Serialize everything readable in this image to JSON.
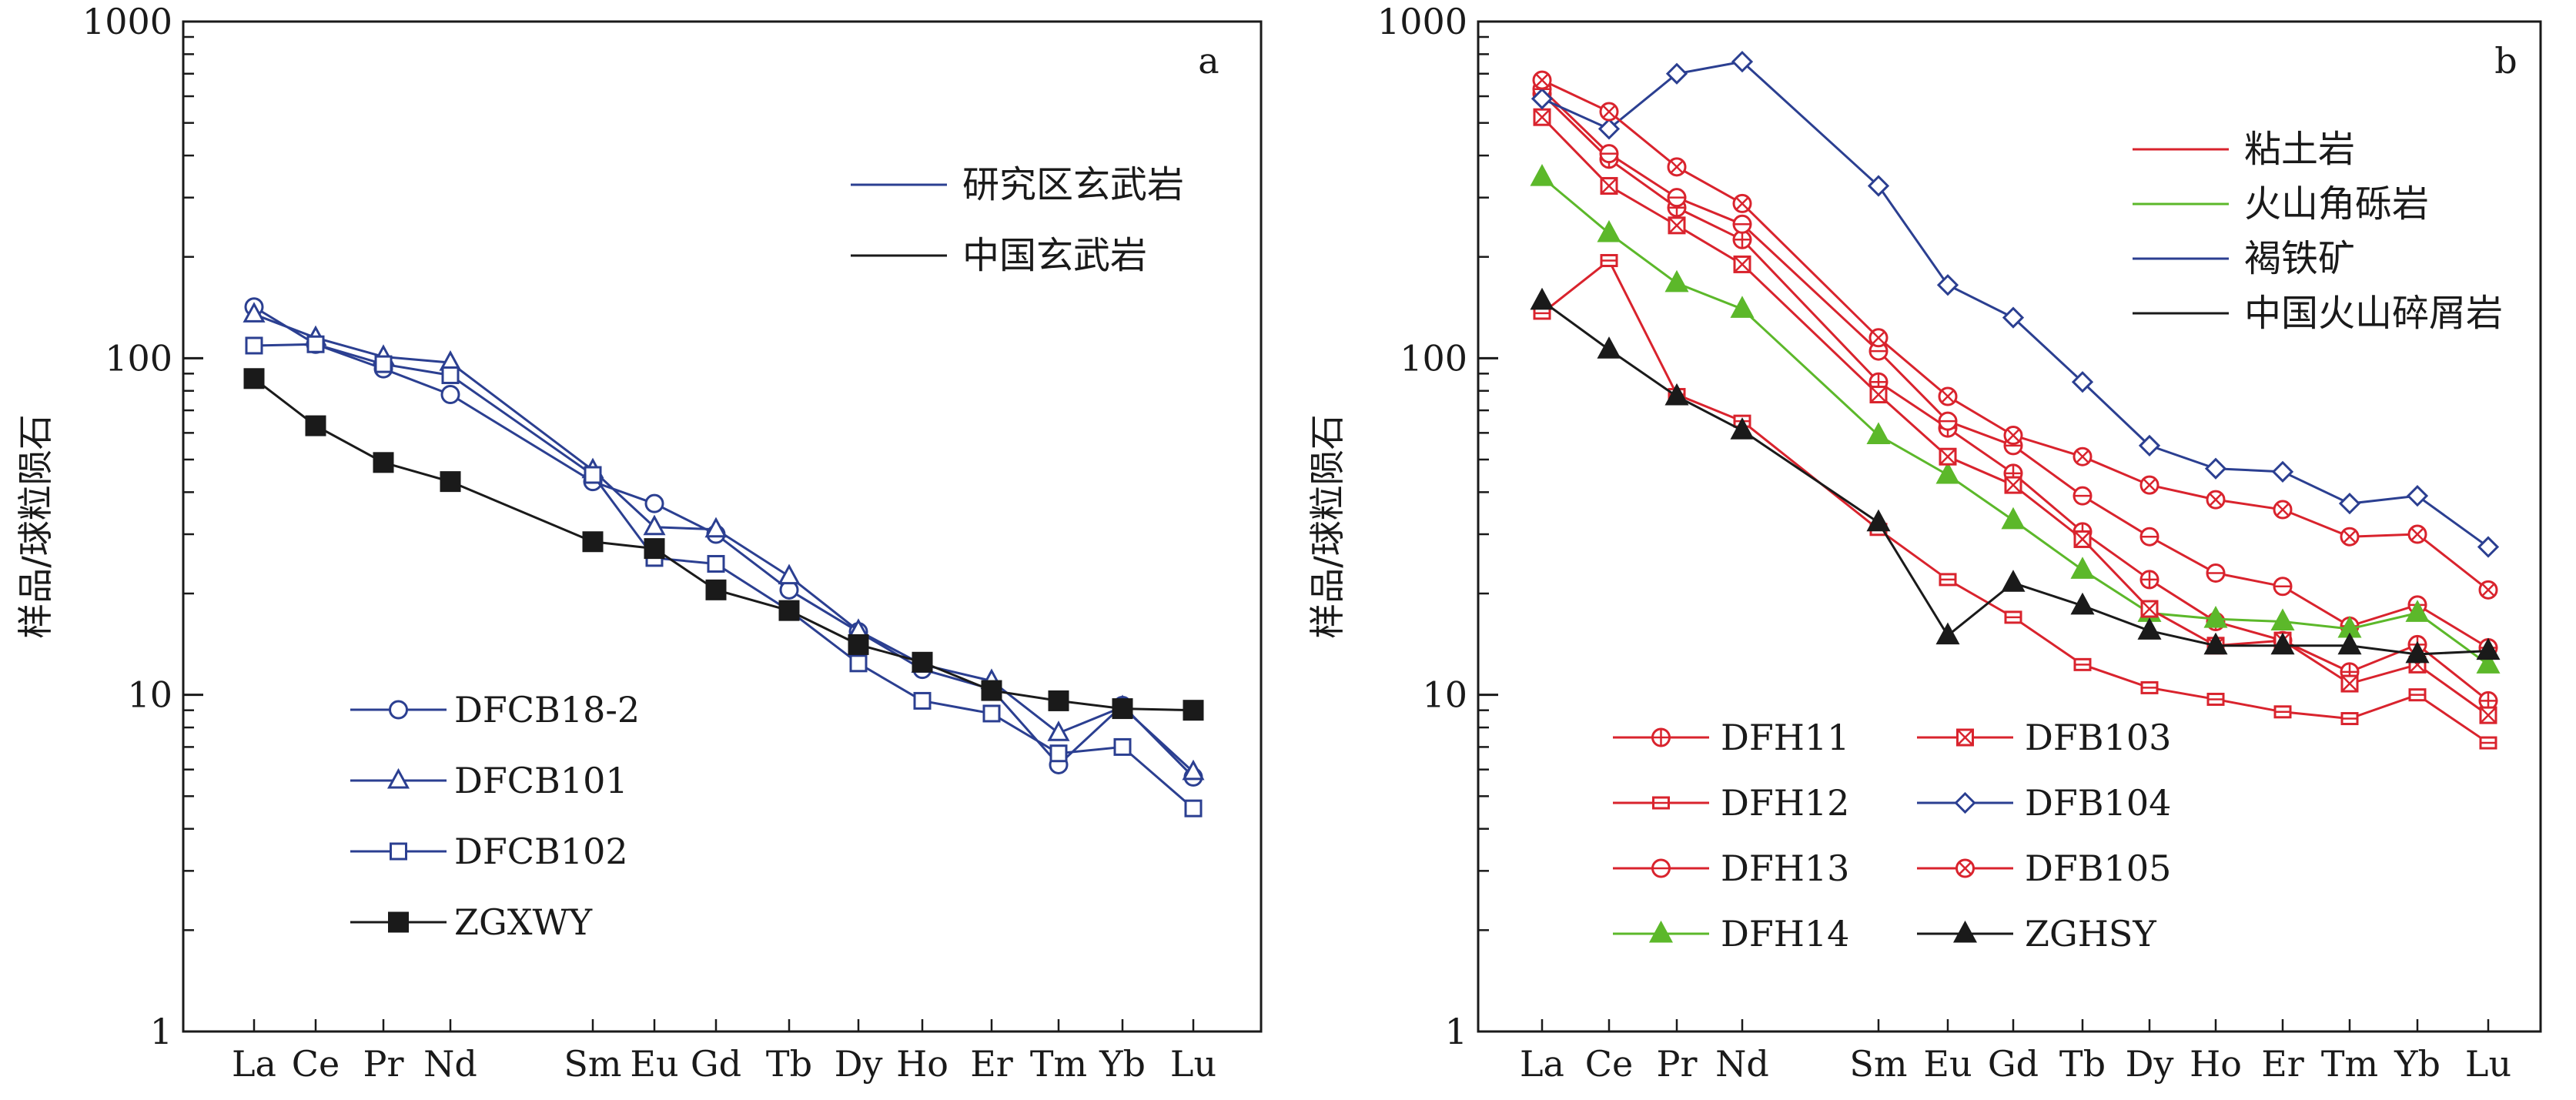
{
  "chart_data": [
    {
      "type": "line",
      "panel_label": "a",
      "ylabel": "样品/球粒陨石",
      "yscale": "log",
      "ylim": [
        1,
        1000
      ],
      "yticks": [
        "1",
        "10",
        "100",
        "1000"
      ],
      "categories": [
        "La",
        "Ce",
        "Pr",
        "Nd",
        "Sm",
        "Eu",
        "Gd",
        "Tb",
        "Dy",
        "Ho",
        "Er",
        "Tm",
        "Yb",
        "Lu"
      ],
      "group_legend": [
        {
          "label": "研究区玄武岩",
          "color": "#2b3f91"
        },
        {
          "label": "中国玄武岩",
          "color": "#1a1a1a"
        }
      ],
      "series": [
        {
          "name": "DFCB18-2",
          "marker": "circle",
          "color": "#2b3f91",
          "values": [
            142,
            110,
            93,
            78,
            43,
            37,
            30,
            20.5,
            15.4,
            11.9,
            10.4,
            6.2,
            9.3,
            5.7
          ]
        },
        {
          "name": "DFCB101",
          "marker": "triangle",
          "color": "#2b3f91",
          "values": [
            135,
            115,
            101,
            97,
            46.5,
            31.5,
            31,
            22.5,
            15.5,
            12.3,
            11,
            7.7,
            9.2,
            5.9
          ]
        },
        {
          "name": "DFCB102",
          "marker": "square-open",
          "color": "#2b3f91",
          "values": [
            109,
            110,
            96,
            89,
            45,
            25.5,
            24.5,
            17.8,
            12.4,
            9.6,
            8.8,
            6.7,
            7,
            4.6
          ]
        },
        {
          "name": "ZGXWY",
          "marker": "square-filled",
          "color": "#1a1a1a",
          "values": [
            87,
            63,
            49,
            43,
            28.5,
            27.2,
            20.5,
            17.8,
            14.1,
            12.5,
            10.3,
            9.6,
            9.1,
            9
          ]
        }
      ]
    },
    {
      "type": "line",
      "panel_label": "b",
      "ylabel": "样品/球粒陨石",
      "yscale": "log",
      "ylim": [
        1,
        1000
      ],
      "yticks": [
        "1",
        "10",
        "100",
        "1000"
      ],
      "categories": [
        "La",
        "Ce",
        "Pr",
        "Nd",
        "Sm",
        "Eu",
        "Gd",
        "Tb",
        "Dy",
        "Ho",
        "Er",
        "Tm",
        "Yb",
        "Lu"
      ],
      "group_legend": [
        {
          "label": "粘土岩",
          "color": "#d9232d"
        },
        {
          "label": "火山角砾岩",
          "color": "#5cb82a"
        },
        {
          "label": "褐铁矿",
          "color": "#2b3f91"
        },
        {
          "label": "中国火山碎屑岩",
          "color": "#1a1a1a"
        }
      ],
      "series": [
        {
          "name": "DFH11",
          "marker": "circle-plus",
          "color": "#d9232d",
          "values": [
            610,
            390,
            280,
            225,
            85,
            62,
            45.5,
            30.5,
            22,
            16.5,
            14.5,
            11.7,
            14.1,
            9.6
          ]
        },
        {
          "name": "DFH12",
          "marker": "half-square",
          "color": "#d9232d",
          "values": [
            136,
            195,
            78,
            65,
            31,
            22,
            17,
            12.3,
            10.5,
            9.7,
            8.9,
            8.5,
            10,
            7.2
          ]
        },
        {
          "name": "DFH13",
          "marker": "circle-dot-line",
          "color": "#d9232d",
          "values": [
            630,
            405,
            300,
            250,
            105,
            65,
            55,
            39,
            29.5,
            23,
            21,
            16,
            18.5,
            13.8
          ]
        },
        {
          "name": "DFH14",
          "marker": "triangle-filled",
          "color": "#5cb82a",
          "values": [
            345,
            235,
            167,
            140,
            59,
            45,
            33,
            23.5,
            17.5,
            16.8,
            16.5,
            15.7,
            17.5,
            12.3
          ]
        },
        {
          "name": "DFB103",
          "marker": "square-x",
          "color": "#d9232d",
          "values": [
            520,
            325,
            248,
            190,
            78,
            51,
            42,
            29,
            18,
            14,
            14.5,
            10.8,
            12.3,
            8.7
          ]
        },
        {
          "name": "DFB104",
          "marker": "diamond",
          "color": "#2b3f91",
          "values": [
            590,
            480,
            700,
            760,
            325,
            165,
            132,
            85,
            55,
            47,
            46,
            37,
            39,
            27.5
          ]
        },
        {
          "name": "DFB105",
          "marker": "circle-x",
          "color": "#d9232d",
          "values": [
            670,
            540,
            370,
            288,
            115,
            77,
            59,
            51,
            42,
            38,
            35.5,
            29.5,
            30,
            20.5
          ]
        },
        {
          "name": "ZGHSY",
          "marker": "triangle-filled",
          "color": "#1a1a1a",
          "values": [
            148,
            106,
            77,
            61,
            32.5,
            15,
            21.5,
            18.4,
            15.5,
            14,
            14,
            14,
            13.2,
            13.5
          ]
        }
      ]
    }
  ]
}
